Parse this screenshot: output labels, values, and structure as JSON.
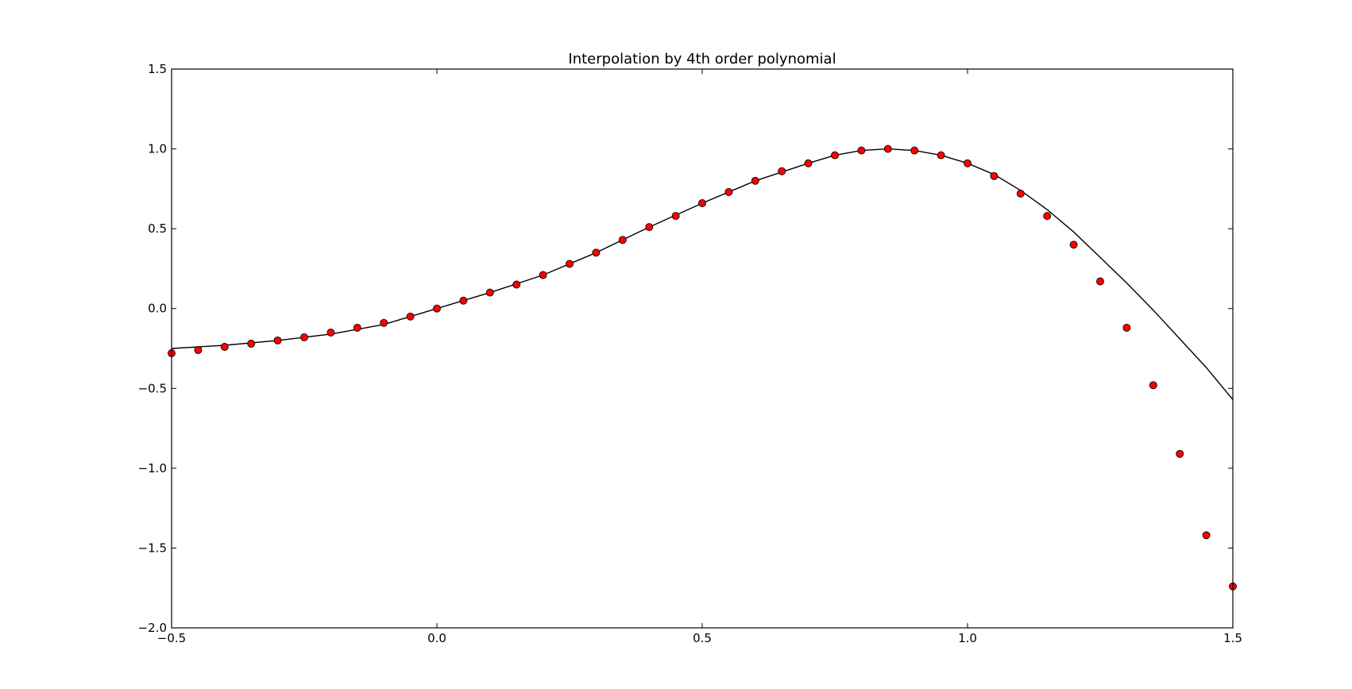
{
  "chart_data": {
    "type": "line",
    "title": "Interpolation by 4th order polynomial",
    "xlabel": "",
    "ylabel": "",
    "xlim": [
      -0.5,
      1.5
    ],
    "ylim": [
      -2.0,
      1.5
    ],
    "grid": false,
    "legend": "none",
    "x_ticks": [
      "−0.5",
      "0.0",
      "0.5",
      "1.0",
      "1.5"
    ],
    "x_tick_values": [
      -0.5,
      0.0,
      0.5,
      1.0,
      1.5
    ],
    "y_ticks": [
      "1.5",
      "1.0",
      "0.5",
      "0.0",
      "−0.5",
      "−1.0",
      "−1.5",
      "−2.0"
    ],
    "y_tick_values": [
      1.5,
      1.0,
      0.5,
      0.0,
      -0.5,
      -1.0,
      -1.5,
      -2.0
    ],
    "series": [
      {
        "style": "line",
        "color": "#000000",
        "x": [
          -0.5,
          -0.4,
          -0.3,
          -0.2,
          -0.1,
          0.0,
          0.1,
          0.2,
          0.3,
          0.4,
          0.5,
          0.6,
          0.7,
          0.75,
          0.8,
          0.85,
          0.9,
          0.95,
          1.0,
          1.05,
          1.1,
          1.15,
          1.2,
          1.25,
          1.3,
          1.35,
          1.4,
          1.45,
          1.5
        ],
        "y": [
          -0.25,
          -0.23,
          -0.2,
          -0.16,
          -0.1,
          0.0,
          0.1,
          0.21,
          0.35,
          0.51,
          0.66,
          0.8,
          0.91,
          0.96,
          0.99,
          1.0,
          0.99,
          0.96,
          0.91,
          0.84,
          0.74,
          0.62,
          0.48,
          0.32,
          0.16,
          -0.01,
          -0.19,
          -0.37,
          -0.57
        ]
      },
      {
        "style": "markers",
        "color": "#ff0000",
        "edge_color": "#000000",
        "x": [
          -0.5,
          -0.45,
          -0.4,
          -0.35,
          -0.3,
          -0.25,
          -0.2,
          -0.15,
          -0.1,
          -0.05,
          0.0,
          0.05,
          0.1,
          0.15,
          0.2,
          0.25,
          0.3,
          0.35,
          0.4,
          0.45,
          0.5,
          0.55,
          0.6,
          0.65,
          0.7,
          0.75,
          0.8,
          0.85,
          0.9,
          0.95,
          1.0,
          1.05,
          1.1,
          1.15,
          1.2,
          1.25,
          1.3,
          1.35,
          1.4,
          1.45,
          1.5
        ],
        "y": [
          -0.28,
          -0.26,
          -0.24,
          -0.22,
          -0.2,
          -0.18,
          -0.15,
          -0.12,
          -0.09,
          -0.05,
          0.0,
          0.05,
          0.1,
          0.15,
          0.21,
          0.28,
          0.35,
          0.43,
          0.51,
          0.58,
          0.66,
          0.73,
          0.8,
          0.86,
          0.91,
          0.96,
          0.99,
          1.0,
          0.99,
          0.96,
          0.91,
          0.83,
          0.72,
          0.58,
          0.4,
          0.17,
          -0.12,
          -0.48,
          -0.91,
          -1.42,
          -1.74
        ]
      }
    ]
  }
}
